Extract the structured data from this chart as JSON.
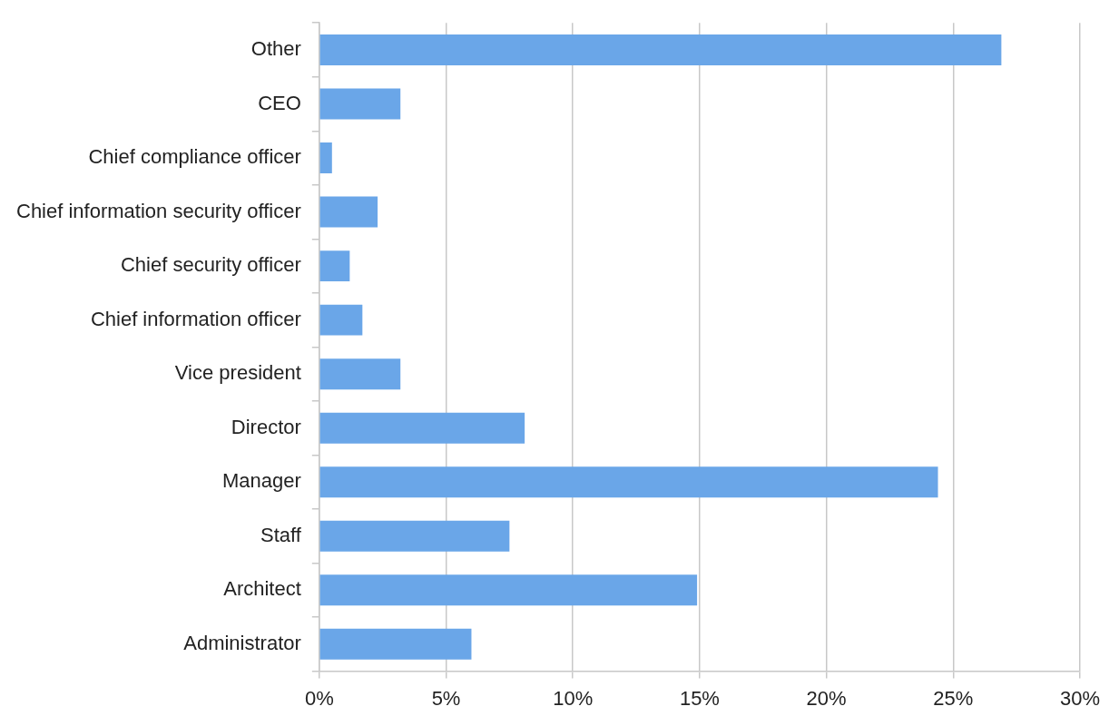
{
  "chart_data": {
    "type": "bar",
    "orientation": "horizontal",
    "categories": [
      "Other",
      "CEO",
      "Chief compliance officer",
      "Chief information security officer",
      "Chief security officer",
      "Chief information officer",
      "Vice president",
      "Director",
      "Manager",
      "Staff",
      "Architect",
      "Administrator"
    ],
    "values": [
      26.9,
      3.2,
      0.5,
      2.3,
      1.2,
      1.7,
      3.2,
      8.1,
      24.4,
      7.5,
      14.9,
      6.0
    ],
    "color": "#6aa6e8",
    "xlim": [
      0,
      30
    ],
    "xticks": [
      {
        "value": 0,
        "label": "0%"
      },
      {
        "value": 5,
        "label": "5%"
      },
      {
        "value": 10,
        "label": "10%"
      },
      {
        "value": 15,
        "label": "15%"
      },
      {
        "value": 20,
        "label": "20%"
      },
      {
        "value": 25,
        "label": "25%"
      },
      {
        "value": 30,
        "label": "30%"
      }
    ],
    "grid": "x",
    "legend": false
  }
}
